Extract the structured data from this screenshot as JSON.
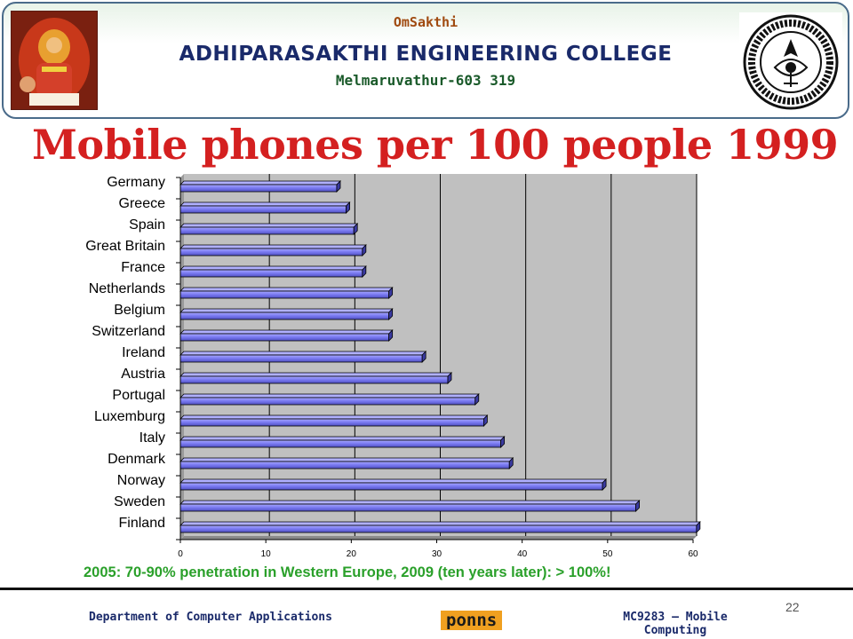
{
  "header": {
    "small_title": "OmSakthi",
    "college": "ADHIPARASAKTHI ENGINEERING COLLEGE",
    "place": "Melmaruvathur-603 319"
  },
  "slide_title": "Mobile phones per 100 people 1999",
  "chart_data": {
    "type": "bar",
    "orientation": "horizontal",
    "categories": [
      "Germany",
      "Greece",
      "Spain",
      "Great Britain",
      "France",
      "Netherlands",
      "Belgium",
      "Switzerland",
      "Ireland",
      "Austria",
      "Portugal",
      "Luxemburg",
      "Italy",
      "Denmark",
      "Norway",
      "Sweden",
      "Finland"
    ],
    "values": [
      18.3,
      19.4,
      20.3,
      21.3,
      21.3,
      24.4,
      24.4,
      24.4,
      28.3,
      31.3,
      34.5,
      35.5,
      37.5,
      38.5,
      49.4,
      53.3,
      60.4
    ],
    "xlim": [
      0,
      60
    ],
    "xticks": [
      0,
      10,
      20,
      30,
      40,
      50,
      60
    ],
    "grid": true,
    "bar_color": "#8080ff",
    "plot_background": "#c0c0c0",
    "title": "",
    "xlabel": "",
    "ylabel": ""
  },
  "footnote": "2005: 70-90% penetration in Western Europe, 2009 (ten years later): > 100%!",
  "footer": {
    "department": "Department of Computer Applications",
    "brand": "ponns",
    "course": "MC9283 – Mobile Computing",
    "page_number": "22"
  }
}
